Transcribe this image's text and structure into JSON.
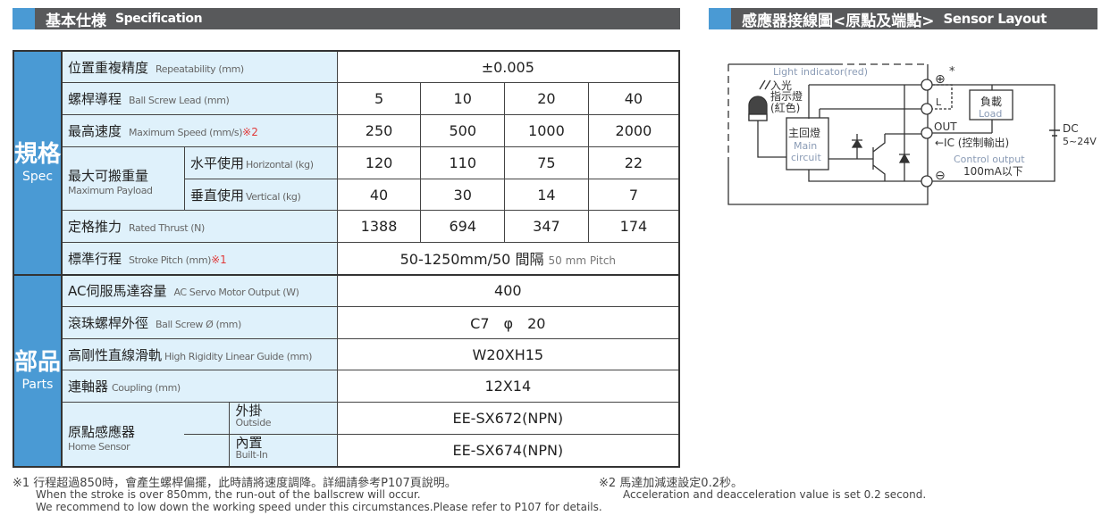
{
  "spec_header": {
    "zh": "基本仕様",
    "en": "Specification"
  },
  "sensor_header": {
    "zh": "感應器接線圖<原點及端點>",
    "en": "Sensor Layout"
  },
  "groups": {
    "spec": {
      "zh": "規格",
      "en": "Spec"
    },
    "parts": {
      "zh": "部品",
      "en": "Parts"
    }
  },
  "rows": {
    "repeat": {
      "zh": "位置重複精度",
      "en": "Repeatability (mm)",
      "value": "±0.005"
    },
    "lead": {
      "zh": "螺桿導程",
      "en": "Ball Screw Lead (mm)",
      "values": [
        "5",
        "10",
        "20",
        "40"
      ]
    },
    "speed": {
      "zh": "最高速度",
      "en": "Maximum Speed (mm/s)",
      "note": "※2",
      "values": [
        "250",
        "500",
        "1000",
        "2000"
      ]
    },
    "payload": {
      "zh": "最大可搬重量",
      "en": "Maximum Payload",
      "horizontal": {
        "zh": "水平使用",
        "en": "Horizontal (kg)",
        "values": [
          "120",
          "110",
          "75",
          "22"
        ]
      },
      "vertical": {
        "zh": "垂直使用",
        "en": "Vertical (kg)",
        "values": [
          "40",
          "30",
          "14",
          "7"
        ]
      }
    },
    "thrust": {
      "zh": "定格推力",
      "en": "Rated Thrust (N)",
      "values": [
        "1388",
        "694",
        "347",
        "174"
      ]
    },
    "stroke": {
      "zh": "標準行程",
      "en": "Stroke Pitch (mm)",
      "note": "※1",
      "value": "50-1250mm/50 間隔",
      "value_en": "50 mm Pitch"
    },
    "motor": {
      "zh": "AC伺服馬達容量",
      "en": "AC Servo Motor Output (W)",
      "value": "400"
    },
    "screw": {
      "zh": "滾珠螺桿外徑",
      "en": "Ball Screw Ø (mm)",
      "value": "C7　φ　20"
    },
    "guide": {
      "zh": "高剛性直線滑軌",
      "en": "High Rigidity Linear Guide (mm)",
      "value": "W20XH15"
    },
    "coupling": {
      "zh": "連軸器",
      "en": "Coupling (mm)",
      "value": "12X14"
    },
    "home": {
      "zh": "原點感應器",
      "en": "Home Sensor",
      "outside": {
        "zh": "外掛",
        "en": "Outside",
        "value": "EE-SX672(NPN)"
      },
      "builtin": {
        "zh": "內置",
        "en": "Built-In",
        "value": "EE-SX674(NPN)"
      }
    }
  },
  "notes": {
    "n1_zh": "※1 行程超過850時，會產生螺桿偏擺，此時請將速度調降。詳細請參考P107頁說明。",
    "n1_en1": "When the stroke is over 850mm, the run-out of the ballscrew will occur.",
    "n1_en2": "We recommend to low down the working speed under this circumstances.Please refer to P107 for details.",
    "n2_zh": "※2 馬達加減速設定0.2秒。",
    "n2_en": "Acceleration and deacceleration value is set 0.2 second."
  },
  "diagram": {
    "light": "Light indicator(red)",
    "in1": "入光",
    "in2": "指示燈",
    "in3": "(紅色)",
    "main_zh": "主回燈",
    "main_en1": "Main",
    "main_en2": "circuit",
    "plus": "⊕",
    "star": "*",
    "l": "L",
    "out": "OUT",
    "minus": "⊖",
    "load_zh": "負載",
    "load_en": "Load",
    "dc": "DC",
    "volt": "5~24V",
    "ic": "←IC (控制輸出)",
    "ctrl": "Control output",
    "ma": "100mA以下"
  },
  "colors": {
    "header_bg": "#58595b",
    "accent": "#4a9ad4",
    "label_bg": "#dff1fb",
    "note_red": "#e03a3a"
  }
}
